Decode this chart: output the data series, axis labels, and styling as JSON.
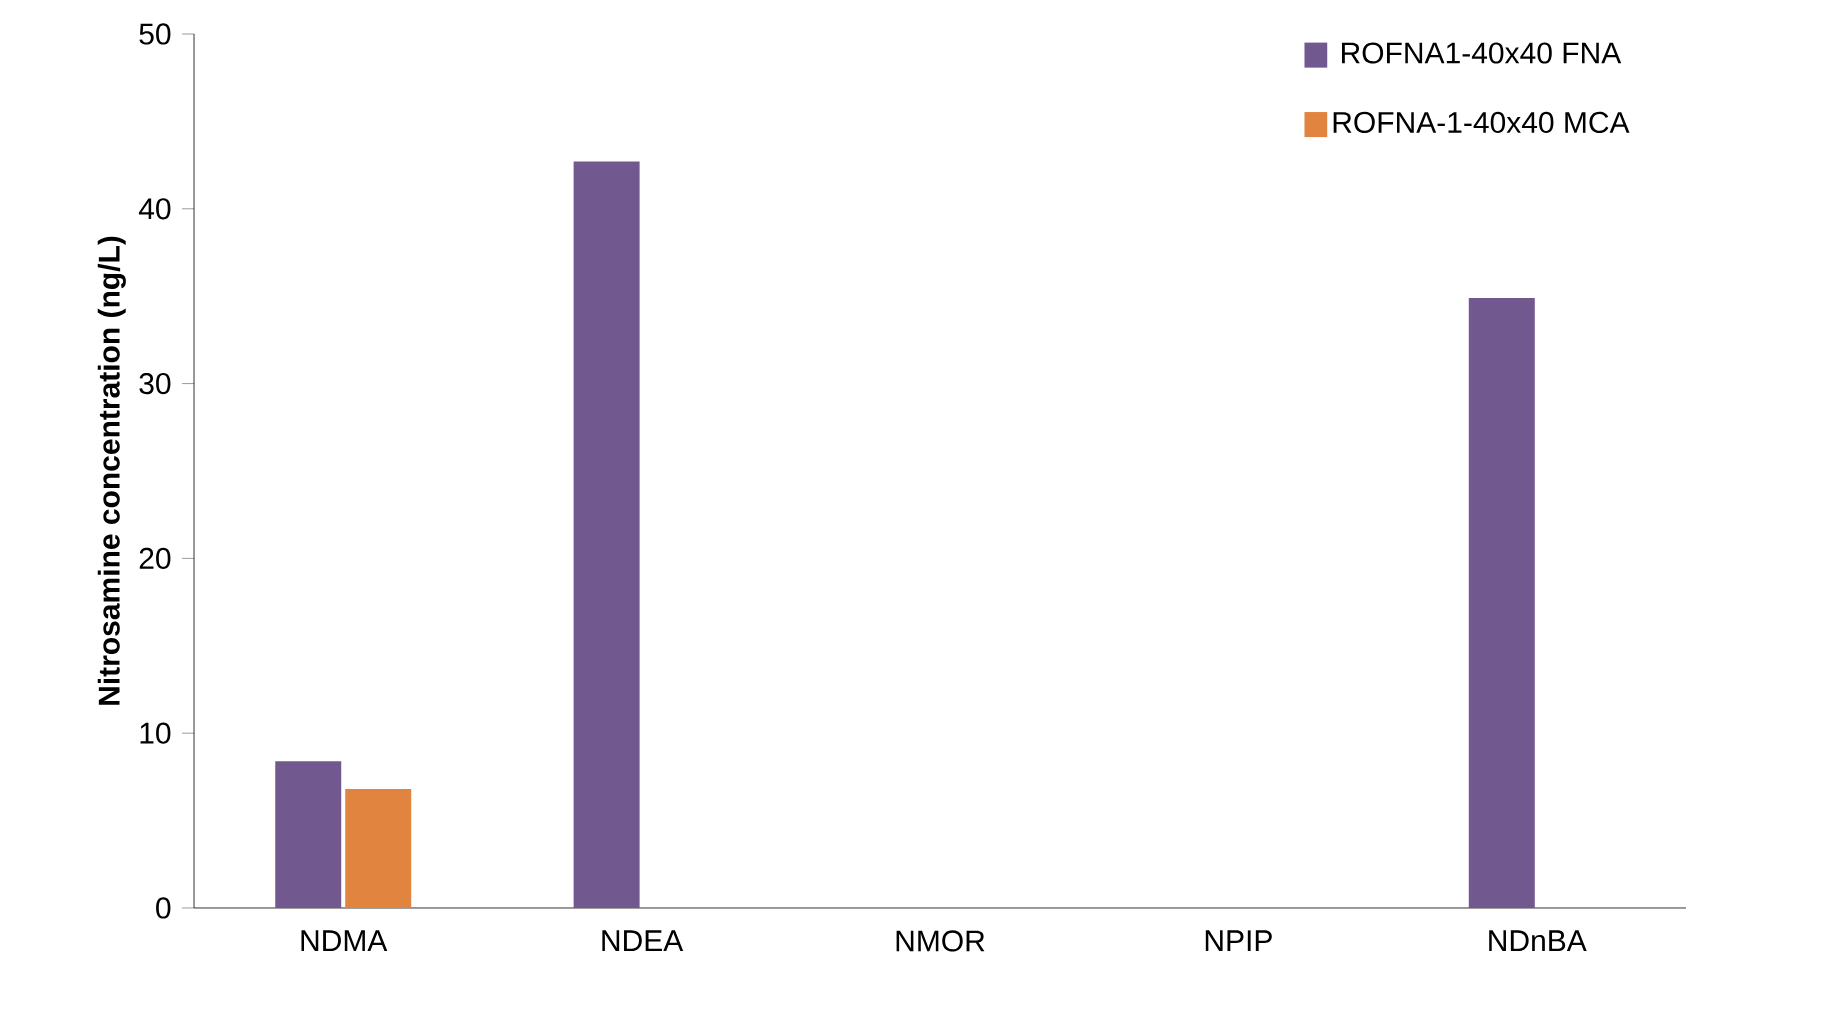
{
  "chart_data": {
    "type": "bar",
    "ylabel": "Nitrosamine concentration (ng/L)",
    "categories": [
      "NDMA",
      "NDEA",
      "NMOR",
      "NPIP",
      "NDnBA"
    ],
    "series": [
      {
        "name": "ROFNA1-40x40 FNA",
        "color": "#71598f",
        "values": [
          8.4,
          42.7,
          0,
          0,
          34.9
        ]
      },
      {
        "name": "ROFNA-1-40x40 MCA",
        "color": "#e0843f",
        "values": [
          6.8,
          0,
          0,
          0,
          0
        ]
      }
    ],
    "ylim": [
      0,
      50
    ],
    "yticks": [
      0,
      10,
      20,
      30,
      40,
      50
    ],
    "grid": false,
    "legend": "top right"
  }
}
